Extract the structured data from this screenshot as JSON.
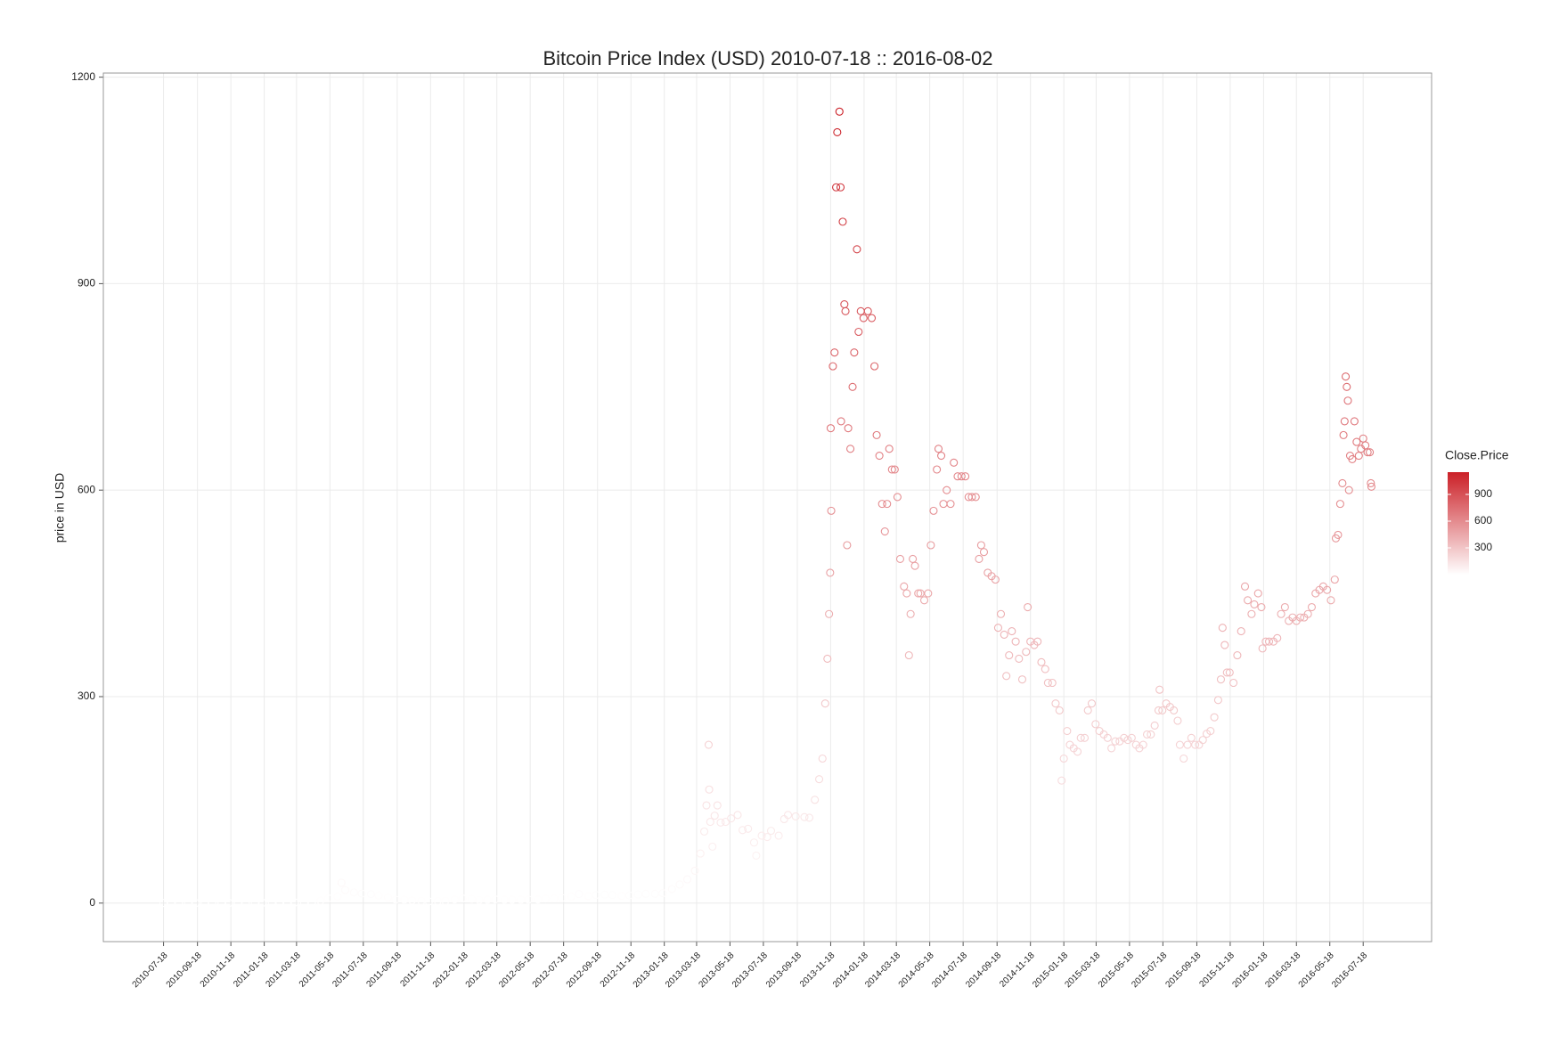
{
  "chart_data": {
    "type": "scatter",
    "title": "Bitcoin Price Index (USD) 2010-07-18 :: 2016-08-02",
    "y_label": "price in USD",
    "legend_title": "Close.Price",
    "legend_ticks": [
      300,
      600,
      900
    ],
    "color_low": "#ffffff",
    "color_high": "#cb2027",
    "grid": true,
    "xlim": [
      "2010-03-30",
      "2016-11-20"
    ],
    "xticks": [
      "2010-07-18",
      "2010-09-18",
      "2010-11-18",
      "2011-01-18",
      "2011-03-18",
      "2011-05-18",
      "2011-07-18",
      "2011-09-18",
      "2011-11-18",
      "2012-01-18",
      "2012-03-18",
      "2012-05-18",
      "2012-07-18",
      "2012-09-18",
      "2012-11-18",
      "2013-01-18",
      "2013-03-18",
      "2013-05-18",
      "2013-07-18",
      "2013-09-18",
      "2013-11-18",
      "2014-01-18",
      "2014-03-18",
      "2014-05-18",
      "2014-07-18",
      "2014-09-18",
      "2014-11-18",
      "2015-01-18",
      "2015-03-18",
      "2015-05-18",
      "2015-07-18",
      "2015-09-18",
      "2015-11-18",
      "2016-01-18",
      "2016-03-18",
      "2016-05-18",
      "2016-07-18"
    ],
    "ylim": [
      -56,
      1206
    ],
    "yticks": [
      0,
      300,
      600,
      900,
      1200
    ],
    "x": [
      "2010-07-18",
      "2010-08-01",
      "2010-08-15",
      "2010-09-01",
      "2010-09-15",
      "2010-10-01",
      "2010-10-15",
      "2010-11-01",
      "2010-11-15",
      "2010-12-01",
      "2010-12-15",
      "2011-01-01",
      "2011-01-15",
      "2011-02-01",
      "2011-02-15",
      "2011-03-01",
      "2011-03-15",
      "2011-04-01",
      "2011-04-15",
      "2011-05-01",
      "2011-05-15",
      "2011-06-01",
      "2011-06-08",
      "2011-06-15",
      "2011-07-01",
      "2011-07-15",
      "2011-08-01",
      "2011-08-15",
      "2011-09-01",
      "2011-09-15",
      "2011-10-01",
      "2011-10-15",
      "2011-11-01",
      "2011-11-15",
      "2011-12-01",
      "2011-12-15",
      "2012-01-01",
      "2012-01-15",
      "2012-02-01",
      "2012-02-15",
      "2012-03-01",
      "2012-03-15",
      "2012-04-01",
      "2012-04-15",
      "2012-05-01",
      "2012-05-15",
      "2012-06-01",
      "2012-06-15",
      "2012-07-01",
      "2012-07-15",
      "2012-08-01",
      "2012-08-15",
      "2012-09-01",
      "2012-09-15",
      "2012-10-01",
      "2012-10-15",
      "2012-11-01",
      "2012-11-15",
      "2012-12-01",
      "2012-12-15",
      "2013-01-01",
      "2013-01-15",
      "2013-02-01",
      "2013-02-15",
      "2013-03-01",
      "2013-03-15",
      "2013-03-25",
      "2013-04-01",
      "2013-04-05",
      "2013-04-09",
      "2013-04-10",
      "2013-04-12",
      "2013-04-16",
      "2013-04-20",
      "2013-04-25",
      "2013-05-01",
      "2013-05-10",
      "2013-05-20",
      "2013-06-01",
      "2013-06-10",
      "2013-06-20",
      "2013-07-01",
      "2013-07-05",
      "2013-07-15",
      "2013-07-25",
      "2013-08-01",
      "2013-08-15",
      "2013-08-25",
      "2013-09-01",
      "2013-09-15",
      "2013-10-01",
      "2013-10-10",
      "2013-10-20",
      "2013-10-28",
      "2013-11-03",
      "2013-11-08",
      "2013-11-12",
      "2013-11-15",
      "2013-11-17",
      "2013-11-18",
      "2013-11-19",
      "2013-11-22",
      "2013-11-25",
      "2013-11-28",
      "2013-11-30",
      "2013-12-04",
      "2013-12-06",
      "2013-12-07",
      "2013-12-10",
      "2013-12-13",
      "2013-12-15",
      "2013-12-18",
      "2013-12-20",
      "2013-12-24",
      "2013-12-28",
      "2013-12-31",
      "2014-01-05",
      "2014-01-08",
      "2014-01-12",
      "2014-01-17",
      "2014-01-25",
      "2014-02-01",
      "2014-02-06",
      "2014-02-10",
      "2014-02-15",
      "2014-02-20",
      "2014-02-25",
      "2014-03-01",
      "2014-03-05",
      "2014-03-10",
      "2014-03-15",
      "2014-03-20",
      "2014-03-25",
      "2014-04-01",
      "2014-04-06",
      "2014-04-10",
      "2014-04-13",
      "2014-04-17",
      "2014-04-21",
      "2014-04-27",
      "2014-05-01",
      "2014-05-08",
      "2014-05-15",
      "2014-05-20",
      "2014-05-25",
      "2014-05-31",
      "2014-06-03",
      "2014-06-08",
      "2014-06-12",
      "2014-06-18",
      "2014-06-25",
      "2014-07-01",
      "2014-07-08",
      "2014-07-15",
      "2014-07-22",
      "2014-07-28",
      "2014-08-03",
      "2014-08-10",
      "2014-08-16",
      "2014-08-20",
      "2014-08-25",
      "2014-09-01",
      "2014-09-08",
      "2014-09-15",
      "2014-09-20",
      "2014-09-25",
      "2014-10-01",
      "2014-10-05",
      "2014-10-10",
      "2014-10-15",
      "2014-10-22",
      "2014-10-28",
      "2014-11-03",
      "2014-11-10",
      "2014-11-13",
      "2014-11-18",
      "2014-11-25",
      "2014-12-01",
      "2014-12-08",
      "2014-12-15",
      "2014-12-20",
      "2014-12-28",
      "2015-01-03",
      "2015-01-10",
      "2015-01-14",
      "2015-01-18",
      "2015-01-24",
      "2015-01-29",
      "2015-02-05",
      "2015-02-12",
      "2015-02-18",
      "2015-02-25",
      "2015-03-03",
      "2015-03-10",
      "2015-03-17",
      "2015-03-24",
      "2015-04-01",
      "2015-04-08",
      "2015-04-15",
      "2015-04-22",
      "2015-04-30",
      "2015-05-08",
      "2015-05-15",
      "2015-05-22",
      "2015-05-30",
      "2015-06-05",
      "2015-06-12",
      "2015-06-19",
      "2015-06-26",
      "2015-07-03",
      "2015-07-10",
      "2015-07-12",
      "2015-07-17",
      "2015-07-24",
      "2015-07-31",
      "2015-08-07",
      "2015-08-14",
      "2015-08-18",
      "2015-08-25",
      "2015-09-01",
      "2015-09-08",
      "2015-09-15",
      "2015-09-22",
      "2015-09-29",
      "2015-10-06",
      "2015-10-13",
      "2015-10-20",
      "2015-10-27",
      "2015-11-01",
      "2015-11-04",
      "2015-11-08",
      "2015-11-12",
      "2015-11-17",
      "2015-11-24",
      "2015-12-01",
      "2015-12-08",
      "2015-12-15",
      "2015-12-20",
      "2015-12-27",
      "2016-01-01",
      "2016-01-08",
      "2016-01-14",
      "2016-01-16",
      "2016-01-22",
      "2016-01-28",
      "2016-02-05",
      "2016-02-12",
      "2016-02-19",
      "2016-02-26",
      "2016-03-04",
      "2016-03-11",
      "2016-03-18",
      "2016-03-25",
      "2016-04-01",
      "2016-04-08",
      "2016-04-15",
      "2016-04-22",
      "2016-04-29",
      "2016-05-06",
      "2016-05-13",
      "2016-05-20",
      "2016-05-27",
      "2016-05-29",
      "2016-06-02",
      "2016-06-06",
      "2016-06-10",
      "2016-06-12",
      "2016-06-14",
      "2016-06-16",
      "2016-06-18",
      "2016-06-20",
      "2016-06-22",
      "2016-06-24",
      "2016-06-28",
      "2016-07-02",
      "2016-07-06",
      "2016-07-10",
      "2016-07-14",
      "2016-07-18",
      "2016-07-22",
      "2016-07-26",
      "2016-07-30",
      "2016-08-01",
      "2016-08-02"
    ],
    "values": [
      0.09,
      0.06,
      0.07,
      0.06,
      0.06,
      0.06,
      0.1,
      0.2,
      0.27,
      0.21,
      0.24,
      0.3,
      0.39,
      0.73,
      1.05,
      0.92,
      0.87,
      0.78,
      1.0,
      3.5,
      7.0,
      9.6,
      29.6,
      19,
      15.4,
      13.8,
      13.0,
      11,
      8.2,
      5.0,
      5.0,
      4.0,
      3.2,
      2.3,
      3.0,
      3.2,
      5.3,
      6.8,
      6.1,
      4.4,
      4.9,
      5.4,
      4.9,
      4.9,
      5.0,
      5.0,
      5.3,
      6.5,
      6.7,
      7.6,
      9.4,
      13.2,
      10.2,
      11.7,
      12.4,
      11.8,
      10.6,
      11.2,
      12.6,
      13.5,
      13.5,
      14.4,
      20.4,
      27,
      34.5,
      47,
      72,
      104,
      142,
      230,
      165,
      118,
      82,
      127,
      142,
      117,
      118,
      123,
      128,
      106,
      108,
      88,
      69,
      98,
      96,
      105,
      98,
      122,
      128,
      126,
      125,
      124,
      150,
      180,
      210,
      290,
      355,
      420,
      480,
      690,
      570,
      780,
      800,
      1040,
      1120,
      1150,
      1040,
      700,
      990,
      870,
      860,
      520,
      690,
      660,
      750,
      800,
      950,
      830,
      860,
      850,
      860,
      850,
      780,
      680,
      650,
      580,
      540,
      580,
      660,
      630,
      630,
      590,
      500,
      460,
      450,
      360,
      420,
      500,
      490,
      450,
      450,
      440,
      450,
      520,
      570,
      630,
      660,
      650,
      580,
      600,
      580,
      640,
      620,
      620,
      620,
      590,
      590,
      590,
      500,
      520,
      510,
      480,
      475,
      470,
      400,
      420,
      390,
      330,
      360,
      395,
      380,
      355,
      325,
      365,
      430,
      380,
      375,
      380,
      350,
      340,
      320,
      320,
      290,
      280,
      178,
      210,
      250,
      230,
      225,
      220,
      240,
      240,
      280,
      290,
      260,
      250,
      245,
      240,
      225,
      235,
      235,
      240,
      237,
      240,
      230,
      225,
      230,
      245,
      245,
      258,
      280,
      310,
      280,
      290,
      285,
      280,
      265,
      230,
      210,
      230,
      240,
      230,
      230,
      237,
      246,
      250,
      270,
      295,
      325,
      400,
      375,
      335,
      335,
      320,
      360,
      395,
      460,
      440,
      420,
      434,
      450,
      430,
      370,
      380,
      380,
      380,
      385,
      420,
      430,
      410,
      415,
      410,
      415,
      415,
      420,
      430,
      450,
      455,
      460,
      455,
      440,
      470,
      530,
      535,
      580,
      610,
      680,
      700,
      765,
      750,
      730,
      600,
      650,
      645,
      700,
      670,
      650,
      660,
      675,
      665,
      655,
      655,
      610,
      605
    ]
  }
}
